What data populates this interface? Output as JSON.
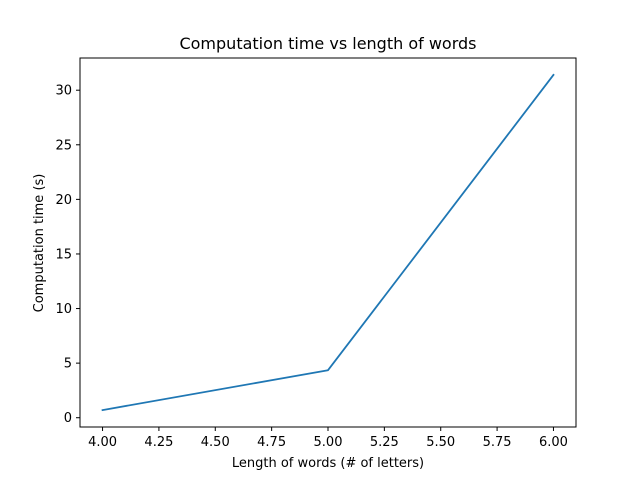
{
  "chart_data": {
    "type": "line",
    "title": "Computation time vs length of words",
    "xlabel": "Length of words (# of letters)",
    "ylabel": "Computation time (s)",
    "xlim": [
      3.9,
      6.1
    ],
    "ylim": [
      -0.85,
      32.95
    ],
    "xticks": [
      4.0,
      4.25,
      4.5,
      4.75,
      5.0,
      5.25,
      5.5,
      5.75,
      6.0
    ],
    "xtick_labels": [
      "4.00",
      "4.25",
      "4.50",
      "4.75",
      "5.00",
      "5.25",
      "5.50",
      "5.75",
      "6.00"
    ],
    "yticks": [
      0,
      5,
      10,
      15,
      20,
      25,
      30
    ],
    "ytick_labels": [
      "0",
      "5",
      "10",
      "15",
      "20",
      "25",
      "30"
    ],
    "grid": false,
    "series": [
      {
        "color": "#1f77b4",
        "x": [
          4,
          5,
          6
        ],
        "y": [
          0.7,
          4.35,
          31.4
        ]
      }
    ]
  }
}
